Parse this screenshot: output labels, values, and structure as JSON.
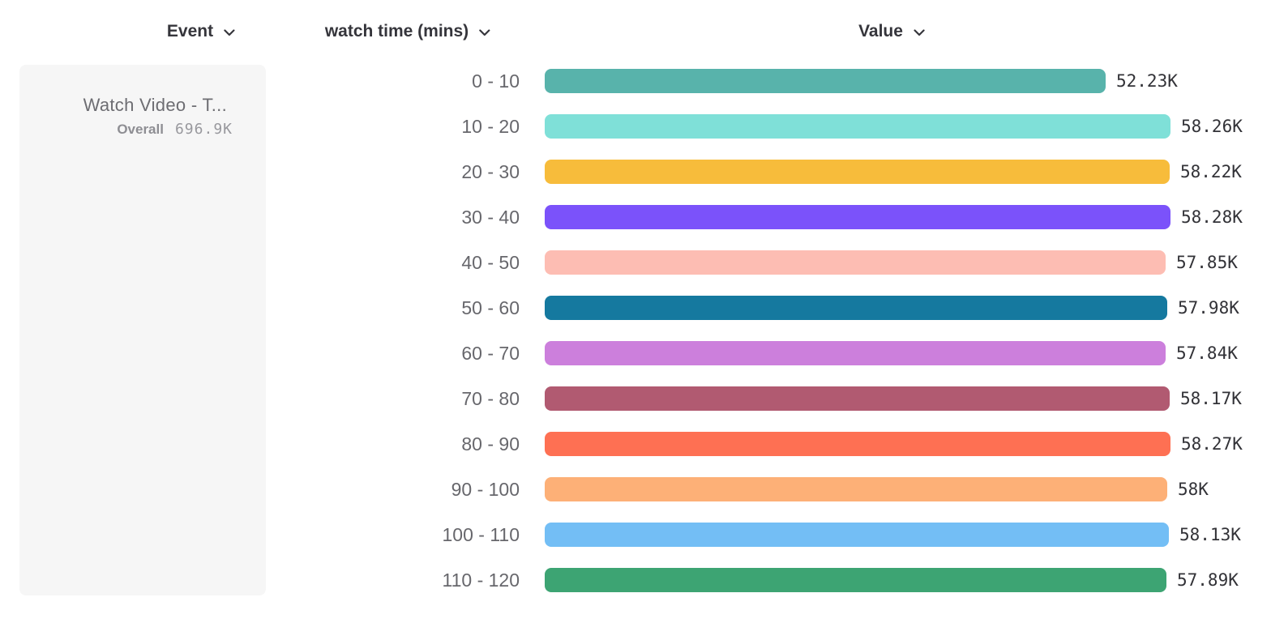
{
  "headers": {
    "event": "Event",
    "breakdown": "watch time (mins)",
    "value": "Value"
  },
  "event_card": {
    "title": "Watch Video - T...",
    "overall_label": "Overall",
    "overall_value": "696.9K"
  },
  "chart_data": {
    "type": "bar",
    "orientation": "horizontal",
    "title": "",
    "xlabel": "Value",
    "ylabel": "watch time (mins)",
    "xlim": [
      0,
      58280
    ],
    "grid": false,
    "legend": false,
    "categories": [
      "0 - 10",
      "10 - 20",
      "20 - 30",
      "30 - 40",
      "40 - 50",
      "50 - 60",
      "60 - 70",
      "70 - 80",
      "80 - 90",
      "90 - 100",
      "100 - 110",
      "110 - 120"
    ],
    "values": [
      52230,
      58260,
      58220,
      58280,
      57850,
      57980,
      57840,
      58170,
      58270,
      58000,
      58130,
      57890
    ],
    "value_labels": [
      "52.23K",
      "58.26K",
      "58.22K",
      "58.28K",
      "57.85K",
      "57.98K",
      "57.84K",
      "58.17K",
      "58.27K",
      "58K",
      "58.13K",
      "57.89K"
    ],
    "bar_colors": [
      "#58b3ab",
      "#7fe0d8",
      "#f7bc3b",
      "#7b52fa",
      "#fdbdb3",
      "#15799f",
      "#cc7fdc",
      "#b15a71",
      "#fe7053",
      "#fdb077",
      "#73bef5",
      "#3da473"
    ]
  },
  "theme": {
    "card_bg": "#f6f6f6",
    "header_text": "#35353b",
    "category_text": "#67676c",
    "value_text": "#323237",
    "card_title_text": "#6d6d72",
    "overall_label_text": "#8e8e93",
    "overall_value_text": "#98989d"
  }
}
